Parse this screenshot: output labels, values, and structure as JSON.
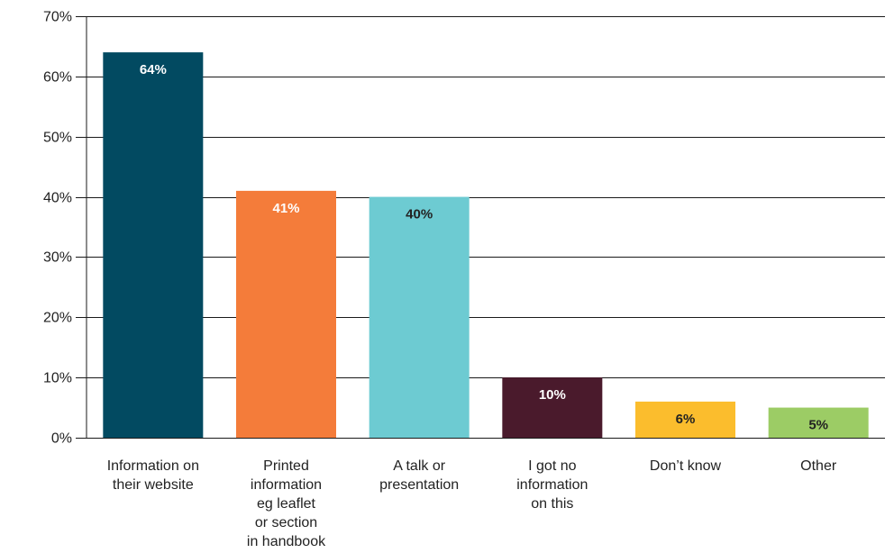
{
  "chart_data": {
    "type": "bar",
    "title": "",
    "xlabel": "",
    "ylabel": "",
    "ylim": [
      0,
      70
    ],
    "yticks": [
      0,
      10,
      20,
      30,
      40,
      50,
      60,
      70
    ],
    "ytick_labels": [
      "0%",
      "10%",
      "20%",
      "30%",
      "40%",
      "50%",
      "60%",
      "70%"
    ],
    "grid": true,
    "legend": "none",
    "categories": [
      [
        "Information on",
        "their website"
      ],
      [
        "Printed",
        "information",
        "eg leaflet",
        "or section",
        "in handbook"
      ],
      [
        "A talk or",
        "presentation"
      ],
      [
        "I got no",
        "information",
        "on this"
      ],
      [
        "Don’t know"
      ],
      [
        "Other"
      ]
    ],
    "values": [
      64,
      41,
      40,
      10,
      6,
      5
    ],
    "value_labels": [
      "64%",
      "41%",
      "40%",
      "10%",
      "6%",
      "5%"
    ],
    "colors": [
      "#024a61",
      "#f47c3a",
      "#6dcbd2",
      "#4a1a2c",
      "#fbbd2d",
      "#9ccc65"
    ],
    "label_colors": [
      "#ffffff",
      "#ffffff",
      "#222222",
      "#ffffff",
      "#222222",
      "#222222"
    ]
  }
}
